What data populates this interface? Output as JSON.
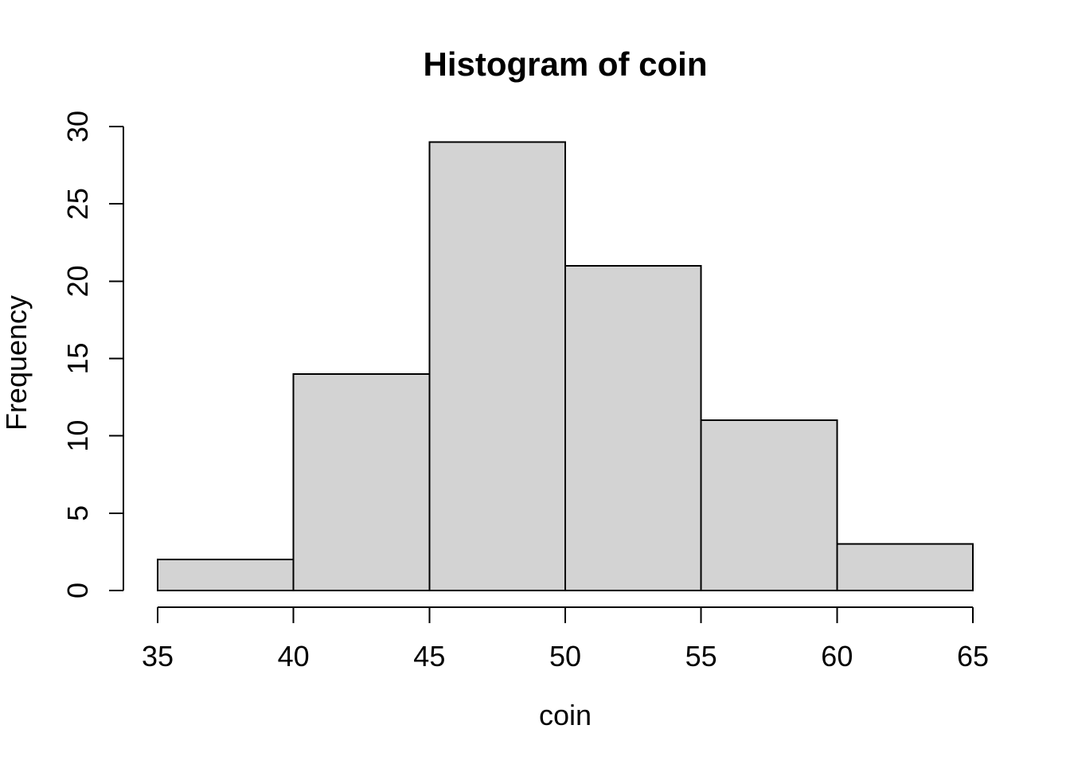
{
  "figure": {
    "title": "Histogram of coin",
    "x_axis_label": "coin",
    "y_axis_label": "Frequency",
    "x_tick_labels": [
      "35",
      "40",
      "45",
      "50",
      "55",
      "60",
      "65"
    ],
    "y_tick_labels": [
      "0",
      "5",
      "10",
      "15",
      "20",
      "25",
      "30"
    ]
  },
  "chart_data": {
    "type": "bar",
    "subtype": "histogram",
    "title": "Histogram of coin",
    "xlabel": "coin",
    "ylabel": "Frequency",
    "breaks": [
      35,
      40,
      45,
      50,
      55,
      60,
      65
    ],
    "counts": [
      2,
      14,
      29,
      21,
      11,
      3
    ],
    "categories": [
      "35-40",
      "40-45",
      "45-50",
      "50-55",
      "55-60",
      "60-65"
    ],
    "values": [
      2,
      14,
      29,
      21,
      11,
      3
    ],
    "xlim": [
      35,
      65
    ],
    "ylim": [
      0,
      30
    ],
    "x_ticks": [
      35,
      40,
      45,
      50,
      55,
      60,
      65
    ],
    "y_ticks": [
      0,
      5,
      10,
      15,
      20,
      25,
      30
    ],
    "grid": false,
    "legend": "none",
    "background_color": "#ffffff",
    "bar_fill_color": "#d3d3d3",
    "bar_border_color": "#000000",
    "axis_color": "#000000",
    "text_color": "#000000"
  }
}
